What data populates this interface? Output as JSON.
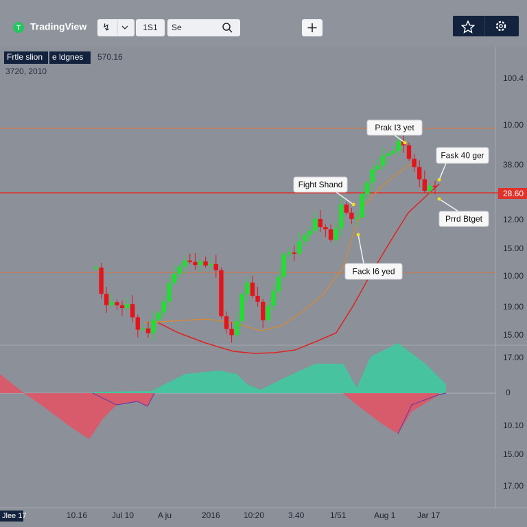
{
  "toolbar": {
    "logo": "TradingView",
    "interval": "↯",
    "timeframe": "1S1",
    "search": "Se"
  },
  "legend": {
    "symbol": "Frtle slion",
    "indicator": "e ldgnes",
    "price": "570.16",
    "date": "3720, 2010"
  },
  "price_axis": [
    "100.4",
    "10.00",
    "38.00",
    "28.60",
    "12.00",
    "15.00",
    "10.00",
    "19.00",
    "15.00",
    "17.00",
    "0",
    "10.10",
    "15.00",
    "17.00"
  ],
  "time_axis": [
    "Jlee 17",
    "10.16",
    "Jul 10",
    "A ju",
    "2016",
    "10:20",
    "3.40",
    "1/51",
    "Aug 1",
    "Jar 17"
  ],
  "annotations": [
    "Prak I3 yet",
    "Fask 40 ger",
    "Fight Shand",
    "Prrd Btget",
    "Fack I6 yed"
  ]
}
